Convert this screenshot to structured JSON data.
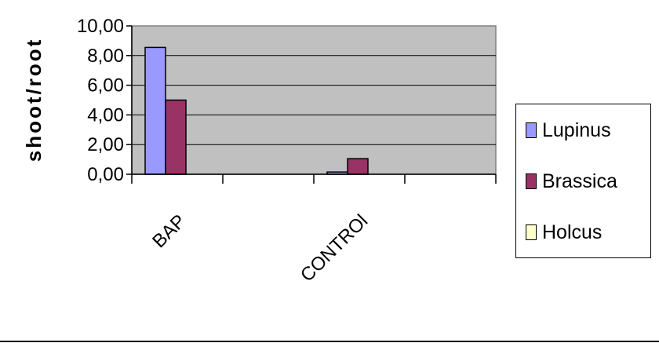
{
  "chart_data": {
    "type": "bar",
    "title": "",
    "xlabel": "",
    "ylabel": "shoot/root",
    "ylim": [
      0,
      10
    ],
    "ytick_labels": [
      "0,00",
      "2,00",
      "4,00",
      "6,00",
      "8,00",
      "10,00"
    ],
    "yticks": [
      0,
      2,
      4,
      6,
      8,
      10
    ],
    "categories": [
      "BAP",
      "",
      "CONTROl",
      ""
    ],
    "series": [
      {
        "name": "Lupinus",
        "values": [
          8.55,
          0,
          0.15,
          0
        ],
        "color": "#9999ff"
      },
      {
        "name": "Brassica",
        "values": [
          5.0,
          0,
          1.05,
          0
        ],
        "color": "#993366"
      },
      {
        "name": "Holcus",
        "values": [
          0,
          0,
          0,
          0
        ],
        "color": "#ffffcc"
      }
    ],
    "grid": true,
    "legend_position": "right",
    "plot_background": "#c0c0c0"
  }
}
